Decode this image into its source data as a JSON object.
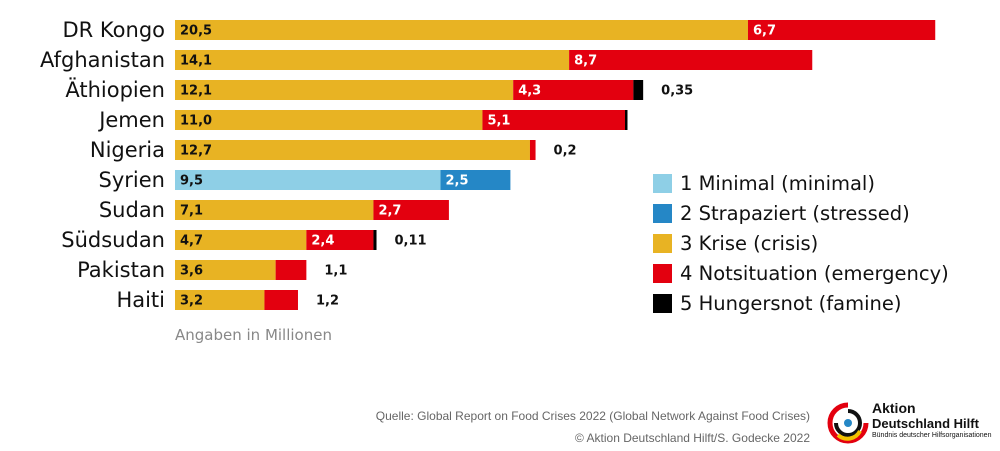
{
  "chart_data": {
    "type": "bar",
    "orientation": "horizontal",
    "stacked": true,
    "unit_note": "Angaben in Millionen",
    "categories": [
      "DR Kongo",
      "Afghanistan",
      "Äthiopien",
      "Jemen",
      "Nigeria",
      "Syrien",
      "Sudan",
      "Südsudan",
      "Pakistan",
      "Haiti"
    ],
    "series": [
      {
        "name": "1 Minimal (minimal)",
        "color": "#8ecfe6",
        "values": [
          0,
          0,
          0,
          0,
          0,
          9.5,
          0,
          0,
          0,
          0
        ],
        "labels": [
          "",
          "",
          "",
          "",
          "",
          "9,5",
          "",
          "",
          "",
          ""
        ]
      },
      {
        "name": "2 Strapaziert (stressed)",
        "color": "#2587c6",
        "values": [
          0,
          0,
          0,
          0,
          0,
          2.5,
          0,
          0,
          0,
          0
        ],
        "labels": [
          "",
          "",
          "",
          "",
          "",
          "2,5",
          "",
          "",
          "",
          ""
        ]
      },
      {
        "name": "3 Krise (crisis)",
        "color": "#e8b323",
        "values": [
          20.5,
          14.1,
          12.1,
          11.0,
          12.7,
          0,
          7.1,
          4.7,
          3.6,
          3.2
        ],
        "labels": [
          "20,5",
          "14,1",
          "12,1",
          "11,0",
          "12,7",
          "",
          "7,1",
          "4,7",
          "3,6",
          "3,2"
        ]
      },
      {
        "name": "4 Notsituation (emergency)",
        "color": "#e3000f",
        "values": [
          6.7,
          8.7,
          4.3,
          5.1,
          0.2,
          0,
          2.7,
          2.4,
          1.1,
          1.2
        ],
        "labels": [
          "6,7",
          "8,7",
          "4,3",
          "5,1",
          "0,2",
          "",
          "2,7",
          "2,4",
          "1,1",
          "1,2"
        ]
      },
      {
        "name": "5 Hungersnot (famine)",
        "color": "#000000",
        "values": [
          0,
          0,
          0.35,
          0.03,
          0,
          0,
          0,
          0.11,
          0,
          0
        ],
        "labels": [
          "",
          "",
          "0,35",
          "",
          "",
          "",
          "",
          "0,11",
          "",
          ""
        ]
      }
    ],
    "legend_position": "right",
    "grid": false
  },
  "source": {
    "line1": "Quelle: Global Report on Food Crises 2022 (Global Network Against Food Crises)",
    "line2": "© Aktion Deutschland Hilft/S. Godecke 2022"
  },
  "logo": {
    "line1": "Aktion",
    "line2": "Deutschland Hilft",
    "line3": "Bündnis deutscher Hilfsorganisationen"
  }
}
